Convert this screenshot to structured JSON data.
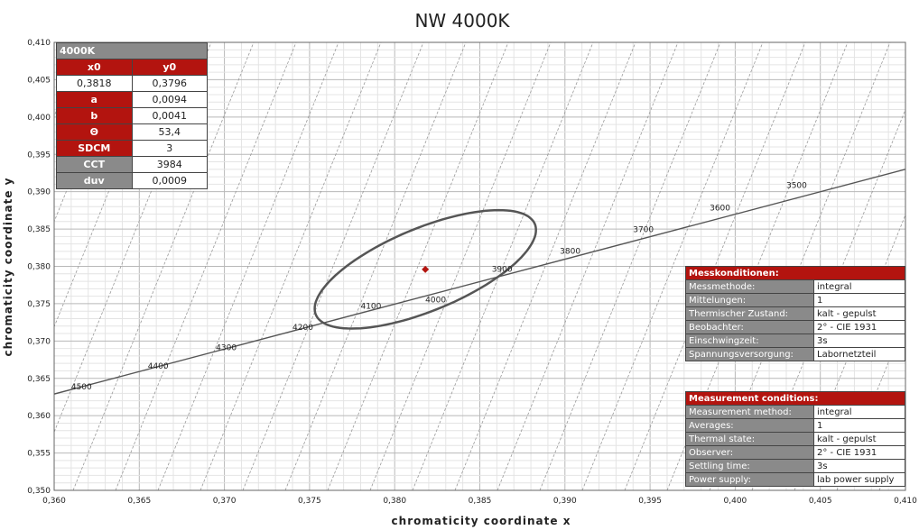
{
  "chart_data": {
    "type": "scatter",
    "title": "NW 4000K",
    "xlabel": "chromaticity coordinate x",
    "ylabel": "chromaticity coordinate y",
    "xlim": [
      0.36,
      0.41
    ],
    "ylim": [
      0.35,
      0.41
    ],
    "x_ticks": [
      "0,360",
      "0,365",
      "0,370",
      "0,375",
      "0,380",
      "0,385",
      "0,390",
      "0,395",
      "0,400",
      "0,405",
      "0,410"
    ],
    "y_ticks": [
      "0,350",
      "0,355",
      "0,360",
      "0,365",
      "0,370",
      "0,375",
      "0,380",
      "0,385",
      "0,390",
      "0,395",
      "0,400",
      "0,405",
      "0,410"
    ],
    "grid": true,
    "planckian_locus": {
      "start": [
        0.36,
        0.3629
      ],
      "end": [
        0.41,
        0.393
      ]
    },
    "cct_labels": [
      {
        "text": "4500",
        "x": 0.361,
        "y": 0.3635
      },
      {
        "text": "4400",
        "x": 0.3655,
        "y": 0.3663
      },
      {
        "text": "4300",
        "x": 0.3695,
        "y": 0.3688
      },
      {
        "text": "4200",
        "x": 0.374,
        "y": 0.3715
      },
      {
        "text": "4100",
        "x": 0.378,
        "y": 0.3743
      },
      {
        "text": "4000",
        "x": 0.3818,
        "y": 0.3752
      },
      {
        "text": "3900",
        "x": 0.3857,
        "y": 0.3793
      },
      {
        "text": "3800",
        "x": 0.3897,
        "y": 0.3817
      },
      {
        "text": "3700",
        "x": 0.394,
        "y": 0.3846
      },
      {
        "text": "3600",
        "x": 0.3985,
        "y": 0.3875
      },
      {
        "text": "3500",
        "x": 0.403,
        "y": 0.3905
      }
    ],
    "ellipse": {
      "x0": 0.3818,
      "y0": 0.3796,
      "a": 0.0094,
      "b": 0.0041,
      "theta_deg": 53.4
    },
    "center_point": {
      "x": 0.3818,
      "y": 0.3796
    }
  },
  "result_table": {
    "title": "4000K",
    "x0_label": "x0",
    "y0_label": "y0",
    "x0_value": "0,3818",
    "y0_value": "0,3796",
    "rows": [
      {
        "label": "a",
        "value": "0,0094",
        "style": "red"
      },
      {
        "label": "b",
        "value": "0,0041",
        "style": "red"
      },
      {
        "label": "Θ",
        "value": "53,4",
        "style": "red"
      },
      {
        "label": "SDCM",
        "value": "3",
        "style": "red"
      },
      {
        "label": "CCT",
        "value": "3984",
        "style": "grey"
      },
      {
        "label": "duv",
        "value": "0,0009",
        "style": "grey"
      }
    ]
  },
  "conditions_de": {
    "title": "Messkonditionen:",
    "rows": [
      {
        "key": "Messmethode:",
        "value": "integral"
      },
      {
        "key": "Mittelungen:",
        "value": "1"
      },
      {
        "key": "Thermischer Zustand:",
        "value": "kalt - gepulst"
      },
      {
        "key": "Beobachter:",
        "value": "2° - CIE 1931"
      },
      {
        "key": "Einschwingzeit:",
        "value": "3s"
      },
      {
        "key": "Spannungsversorgung:",
        "value": "Labornetzteil"
      }
    ]
  },
  "conditions_en": {
    "title": "Measurement conditions:",
    "rows": [
      {
        "key": "Measurement method:",
        "value": "integral"
      },
      {
        "key": "Averages:",
        "value": "1"
      },
      {
        "key": "Thermal state:",
        "value": "kalt - gepulst"
      },
      {
        "key": "Observer:",
        "value": "2° - CIE 1931"
      },
      {
        "key": "Settling time:",
        "value": "3s"
      },
      {
        "key": "Power supply:",
        "value": "lab power supply"
      }
    ]
  },
  "colors": {
    "accent_red": "#b3140f",
    "header_grey": "#8a8a8a",
    "ellipse": "#555555",
    "locus": "#555555",
    "point": "#b3140f"
  }
}
